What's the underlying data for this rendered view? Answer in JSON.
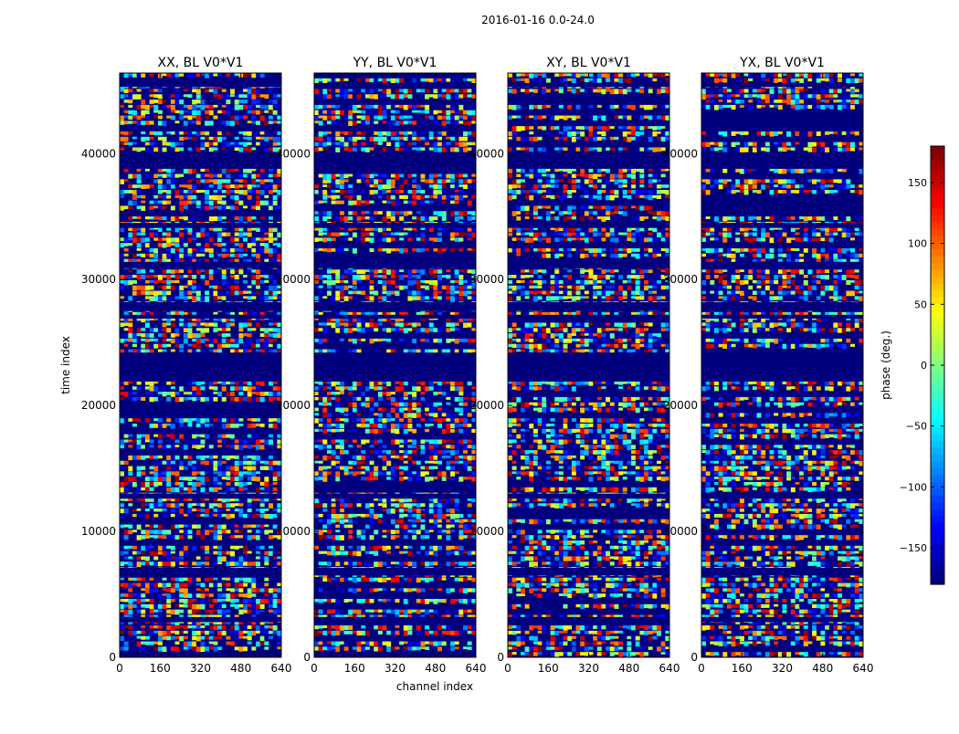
{
  "figure": {
    "suptitle": "2016-01-16 0.0-24.0",
    "xlabel": "channel index",
    "ylabel": "time index"
  },
  "chart_data": {
    "type": "heatmap",
    "panels": [
      {
        "title": "XX, BL V0*V1"
      },
      {
        "title": "YY, BL V0*V1"
      },
      {
        "title": "XY, BL V0*V1"
      },
      {
        "title": "YX, BL V0*V1"
      }
    ],
    "x": {
      "label": "channel index",
      "lim": [
        0,
        640
      ],
      "ticks": [
        0,
        160,
        320,
        480,
        640
      ]
    },
    "y": {
      "label": "time index",
      "lim": [
        0,
        46400
      ],
      "ticks": [
        0,
        10000,
        20000,
        30000,
        40000
      ]
    },
    "colorbar": {
      "label": "phase (deg.)",
      "lim": [
        -180,
        180
      ],
      "ticks": [
        -150,
        -100,
        -50,
        0,
        50,
        100,
        150
      ],
      "colormap": "jet"
    },
    "blank_bands_time": [
      [
        21900,
        24200
      ],
      [
        6500,
        7100
      ],
      [
        38800,
        40100
      ],
      [
        27500,
        28200
      ],
      [
        30900,
        31400
      ],
      [
        12600,
        13000
      ],
      [
        2800,
        3200
      ],
      [
        26900,
        27200
      ],
      [
        34100,
        34500
      ],
      [
        45300,
        45600
      ]
    ]
  }
}
